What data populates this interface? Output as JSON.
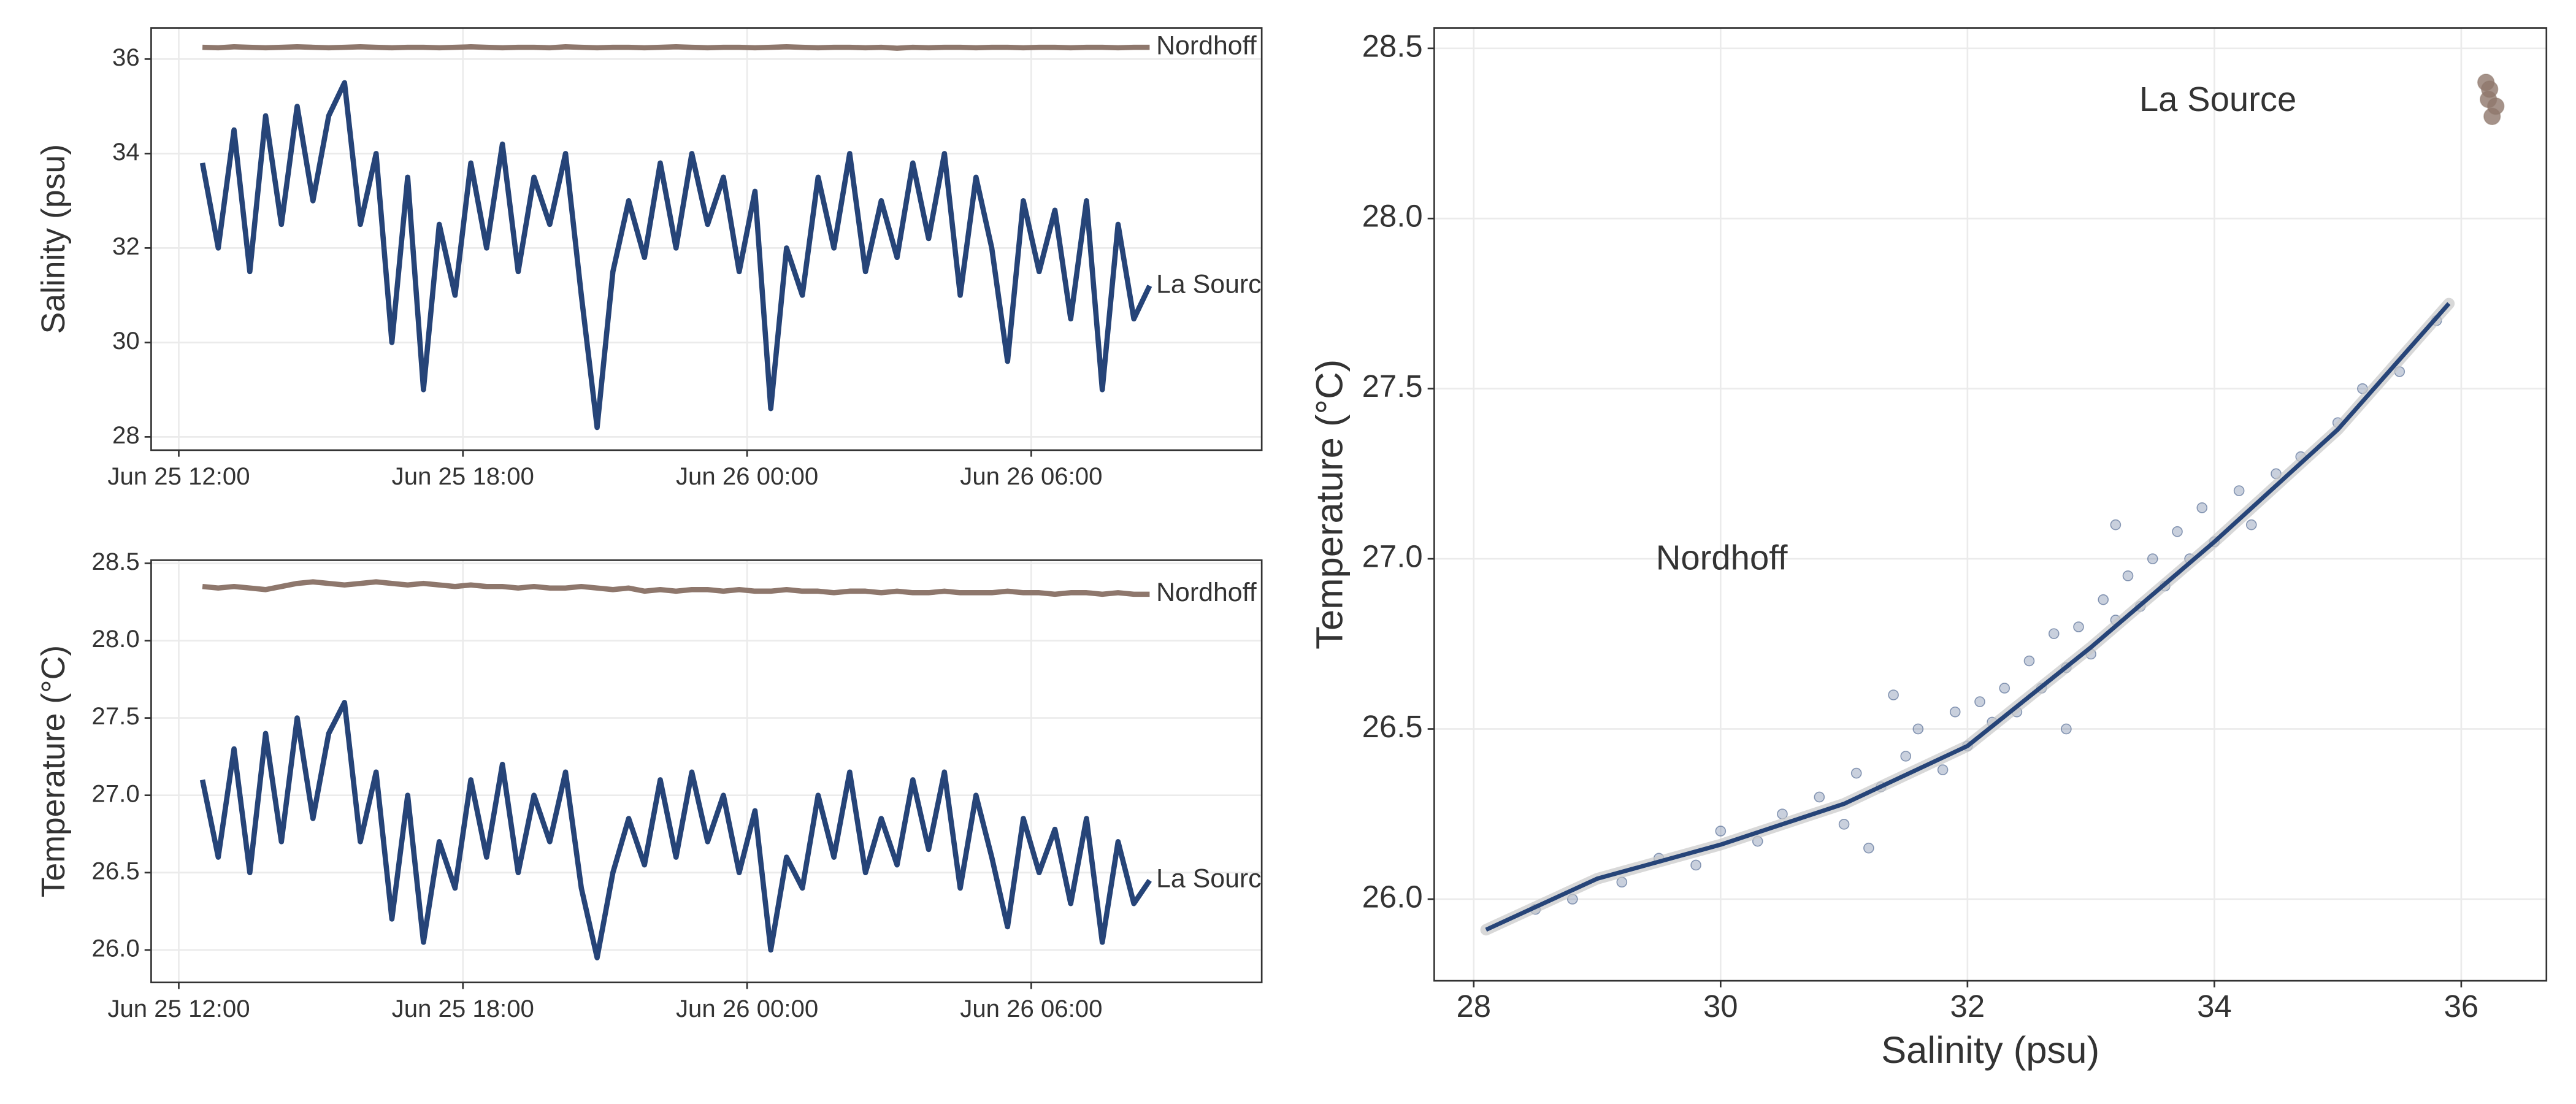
{
  "chart_data": [
    {
      "type": "line",
      "y_label": "Salinity (psu)",
      "x": [
        "Jun 25 12:30",
        "Jun 25 12:50",
        "Jun 25 13:10",
        "Jun 25 13:30",
        "Jun 25 13:50",
        "Jun 25 14:10",
        "Jun 25 14:30",
        "Jun 25 14:50",
        "Jun 25 15:10",
        "Jun 25 15:30",
        "Jun 25 15:50",
        "Jun 25 16:10",
        "Jun 25 16:30",
        "Jun 25 16:50",
        "Jun 25 17:10",
        "Jun 25 17:30",
        "Jun 25 17:50",
        "Jun 25 18:10",
        "Jun 25 18:30",
        "Jun 25 18:50",
        "Jun 25 19:10",
        "Jun 25 19:30",
        "Jun 25 19:50",
        "Jun 25 20:10",
        "Jun 25 20:30",
        "Jun 25 20:50",
        "Jun 25 21:10",
        "Jun 25 21:30",
        "Jun 25 21:50",
        "Jun 25 22:10",
        "Jun 25 22:30",
        "Jun 25 22:50",
        "Jun 25 23:10",
        "Jun 25 23:30",
        "Jun 25 23:50",
        "Jun 26 00:10",
        "Jun 26 00:30",
        "Jun 26 00:50",
        "Jun 26 01:10",
        "Jun 26 01:30",
        "Jun 26 01:50",
        "Jun 26 02:10",
        "Jun 26 02:30",
        "Jun 26 02:50",
        "Jun 26 03:10",
        "Jun 26 03:30",
        "Jun 26 03:50",
        "Jun 26 04:10",
        "Jun 26 04:30",
        "Jun 26 04:50",
        "Jun 26 05:10",
        "Jun 26 05:30",
        "Jun 26 05:50",
        "Jun 26 06:10",
        "Jun 26 06:30",
        "Jun 26 06:50",
        "Jun 26 07:10",
        "Jun 26 07:30",
        "Jun 26 07:50",
        "Jun 26 08:10",
        "Jun 26 08:30"
      ],
      "series": [
        {
          "name": "Nordhoff",
          "color": "#8e776c",
          "values": [
            36.25,
            36.24,
            36.26,
            36.25,
            36.24,
            36.25,
            36.26,
            36.25,
            36.24,
            36.25,
            36.26,
            36.25,
            36.24,
            36.25,
            36.25,
            36.24,
            36.25,
            36.26,
            36.25,
            36.24,
            36.25,
            36.25,
            36.24,
            36.26,
            36.25,
            36.24,
            36.25,
            36.25,
            36.24,
            36.25,
            36.26,
            36.25,
            36.24,
            36.25,
            36.25,
            36.24,
            36.25,
            36.26,
            36.25,
            36.24,
            36.25,
            36.25,
            36.24,
            36.25,
            36.23,
            36.25,
            36.24,
            36.25,
            36.25,
            36.24,
            36.25,
            36.25,
            36.24,
            36.25,
            36.25,
            36.24,
            36.25,
            36.25,
            36.24,
            36.25,
            36.25
          ]
        },
        {
          "name": "La Source",
          "color": "#264478",
          "values": [
            33.8,
            32.0,
            34.5,
            31.5,
            34.8,
            32.5,
            35.0,
            33.0,
            34.8,
            35.5,
            32.5,
            34.0,
            30.0,
            33.5,
            29.0,
            32.5,
            31.0,
            33.8,
            32.0,
            34.2,
            31.5,
            33.5,
            32.5,
            34.0,
            31.0,
            28.2,
            31.5,
            33.0,
            31.8,
            33.8,
            32.0,
            34.0,
            32.5,
            33.5,
            31.5,
            33.2,
            28.6,
            32.0,
            31.0,
            33.5,
            32.0,
            34.0,
            31.5,
            33.0,
            31.8,
            33.8,
            32.2,
            34.0,
            31.0,
            33.5,
            32.0,
            29.6,
            33.0,
            31.5,
            32.8,
            30.5,
            33.0,
            29.0,
            32.5,
            30.5,
            31.2
          ]
        }
      ],
      "xlim": [
        "Jun 25 11:25",
        "Jun 26 10:52"
      ],
      "xticks": [
        "Jun 25 12:00",
        "Jun 25 18:00",
        "Jun 26 00:00",
        "Jun 26 06:00"
      ],
      "ylim": [
        27.72,
        36.66
      ],
      "yticks": [
        28,
        30,
        32,
        34,
        36
      ],
      "grid": true
    },
    {
      "type": "line",
      "y_label": "Temperature (°C)",
      "x": [
        "Jun 25 12:30",
        "Jun 25 12:50",
        "Jun 25 13:10",
        "Jun 25 13:30",
        "Jun 25 13:50",
        "Jun 25 14:10",
        "Jun 25 14:30",
        "Jun 25 14:50",
        "Jun 25 15:10",
        "Jun 25 15:30",
        "Jun 25 15:50",
        "Jun 25 16:10",
        "Jun 25 16:30",
        "Jun 25 16:50",
        "Jun 25 17:10",
        "Jun 25 17:30",
        "Jun 25 17:50",
        "Jun 25 18:10",
        "Jun 25 18:30",
        "Jun 25 18:50",
        "Jun 25 19:10",
        "Jun 25 19:30",
        "Jun 25 19:50",
        "Jun 25 20:10",
        "Jun 25 20:30",
        "Jun 25 20:50",
        "Jun 25 21:10",
        "Jun 25 21:30",
        "Jun 25 21:50",
        "Jun 25 22:10",
        "Jun 25 22:30",
        "Jun 25 22:50",
        "Jun 25 23:10",
        "Jun 25 23:30",
        "Jun 25 23:50",
        "Jun 26 00:10",
        "Jun 26 00:30",
        "Jun 26 00:50",
        "Jun 26 01:10",
        "Jun 26 01:30",
        "Jun 26 01:50",
        "Jun 26 02:10",
        "Jun 26 02:30",
        "Jun 26 02:50",
        "Jun 26 03:10",
        "Jun 26 03:30",
        "Jun 26 03:50",
        "Jun 26 04:10",
        "Jun 26 04:30",
        "Jun 26 04:50",
        "Jun 26 05:10",
        "Jun 26 05:30",
        "Jun 26 05:50",
        "Jun 26 06:10",
        "Jun 26 06:30",
        "Jun 26 06:50",
        "Jun 26 07:10",
        "Jun 26 07:30",
        "Jun 26 07:50",
        "Jun 26 08:10",
        "Jun 26 08:30"
      ],
      "series": [
        {
          "name": "Nordhoff",
          "color": "#8e776c",
          "values": [
            28.35,
            28.34,
            28.35,
            28.34,
            28.33,
            28.35,
            28.37,
            28.38,
            28.37,
            28.36,
            28.37,
            28.38,
            28.37,
            28.36,
            28.37,
            28.36,
            28.35,
            28.36,
            28.35,
            28.35,
            28.34,
            28.35,
            28.34,
            28.34,
            28.35,
            28.34,
            28.33,
            28.34,
            28.32,
            28.33,
            28.32,
            28.33,
            28.33,
            28.32,
            28.33,
            28.32,
            28.32,
            28.33,
            28.32,
            28.32,
            28.31,
            28.32,
            28.32,
            28.31,
            28.32,
            28.31,
            28.31,
            28.32,
            28.31,
            28.31,
            28.31,
            28.32,
            28.31,
            28.31,
            28.3,
            28.31,
            28.31,
            28.3,
            28.31,
            28.3,
            28.3
          ]
        },
        {
          "name": "La Source",
          "color": "#264478",
          "values": [
            27.1,
            26.6,
            27.3,
            26.5,
            27.4,
            26.7,
            27.5,
            26.85,
            27.4,
            27.6,
            26.7,
            27.15,
            26.2,
            27.0,
            26.05,
            26.7,
            26.4,
            27.1,
            26.6,
            27.2,
            26.5,
            27.0,
            26.7,
            27.15,
            26.4,
            25.95,
            26.5,
            26.85,
            26.55,
            27.1,
            26.6,
            27.15,
            26.7,
            27.0,
            26.5,
            26.9,
            26.0,
            26.6,
            26.4,
            27.0,
            26.6,
            27.15,
            26.5,
            26.85,
            26.55,
            27.1,
            26.65,
            27.15,
            26.4,
            27.0,
            26.6,
            26.15,
            26.85,
            26.5,
            26.78,
            26.3,
            26.85,
            26.05,
            26.7,
            26.3,
            26.45
          ]
        }
      ],
      "xlim": [
        "Jun 25 11:25",
        "Jun 26 10:52"
      ],
      "xticks": [
        "Jun 25 12:00",
        "Jun 25 18:00",
        "Jun 26 00:00",
        "Jun 26 06:00"
      ],
      "ylim": [
        25.79,
        28.52
      ],
      "yticks": [
        {
          "value": 26,
          "label": "26.0"
        },
        26.5,
        {
          "value": 27,
          "label": "27.0"
        },
        27.5,
        {
          "value": 28,
          "label": "28.0"
        },
        28.5
      ],
      "grid": true
    },
    {
      "type": "scatter",
      "x_label": "Salinity (psu)",
      "y_label": "Temperature (°C)",
      "series": [
        {
          "name": "La Source",
          "color": "#264478",
          "x": [
            28.5,
            28.8,
            29.2,
            29.5,
            29.8,
            30.0,
            30.3,
            30.5,
            30.8,
            31.0,
            31.1,
            31.3,
            31.5,
            31.6,
            31.8,
            31.9,
            32.0,
            32.1,
            32.2,
            32.3,
            32.4,
            32.5,
            32.6,
            32.7,
            32.8,
            32.9,
            33.0,
            33.1,
            33.2,
            33.3,
            33.4,
            33.5,
            33.6,
            33.7,
            33.8,
            33.9,
            34.0,
            34.2,
            34.3,
            34.5,
            34.7,
            35.0,
            35.2,
            35.5,
            35.8,
            31.2,
            32.8,
            33.2,
            31.4
          ],
          "values": [
            25.97,
            26.0,
            26.05,
            26.12,
            26.1,
            26.2,
            26.17,
            26.25,
            26.3,
            26.22,
            26.37,
            26.33,
            26.42,
            26.5,
            26.38,
            26.55,
            26.45,
            26.58,
            26.52,
            26.62,
            26.55,
            26.7,
            26.62,
            26.78,
            26.68,
            26.8,
            26.72,
            26.88,
            26.82,
            26.95,
            26.86,
            27.0,
            26.92,
            27.08,
            27.0,
            27.15,
            27.05,
            27.2,
            27.1,
            27.25,
            27.3,
            27.4,
            27.5,
            27.55,
            27.7,
            26.15,
            26.5,
            27.1,
            26.6
          ]
        },
        {
          "name": "Nordhoff",
          "color": "#8e776c",
          "x": [
            36.2,
            36.22,
            36.25,
            36.28,
            36.23
          ],
          "values": [
            28.4,
            28.35,
            28.3,
            28.33,
            28.38
          ]
        }
      ],
      "fit": {
        "color": "#264478",
        "x": [
          28.1,
          29,
          30,
          31,
          32,
          33,
          34,
          35,
          35.9
        ],
        "values": [
          25.91,
          26.06,
          26.16,
          26.28,
          26.45,
          26.74,
          27.05,
          27.38,
          27.75
        ]
      },
      "xlim": [
        27.68,
        36.69
      ],
      "xticks": [
        28,
        30,
        32,
        34,
        36
      ],
      "ylim": [
        25.76,
        28.56
      ],
      "yticks": [
        {
          "value": 26,
          "label": "26.0"
        },
        26.5,
        {
          "value": 27,
          "label": "27.0"
        },
        27.5,
        {
          "value": 28,
          "label": "28.0"
        },
        28.5
      ],
      "grid": true
    }
  ]
}
